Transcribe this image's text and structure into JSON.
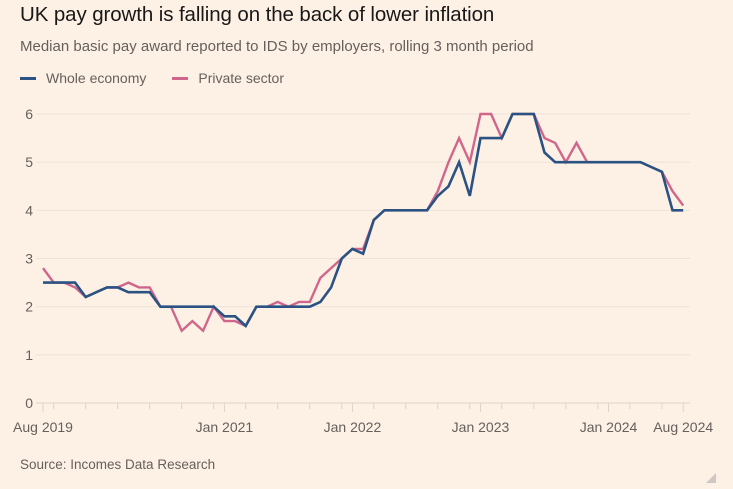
{
  "title": "UK pay growth is falling on the back of lower inflation",
  "subtitle": "Median basic pay award reported to IDS by employers, rolling 3 month period",
  "source": "Source: Incomes Data Research",
  "legend": [
    {
      "label": "Whole economy",
      "color": "#2a5283"
    },
    {
      "label": "Private sector",
      "color": "#d0668b"
    }
  ],
  "chart_data": {
    "type": "line",
    "title": "UK pay growth is falling on the back of lower inflation",
    "subtitle": "Median basic pay award reported to IDS by employers, rolling 3 month period",
    "xlabel": "",
    "ylabel": "",
    "x_start": "Aug 2019",
    "x_end": "Aug 2024",
    "x_frequency": "monthly",
    "ylim": [
      0,
      6
    ],
    "yticks": [
      0,
      1,
      2,
      3,
      4,
      5,
      6
    ],
    "xtick_labels": [
      {
        "label": "Aug 2019",
        "month_index": 0
      },
      {
        "label": "Jan 2021",
        "month_index": 17
      },
      {
        "label": "Jan 2022",
        "month_index": 29
      },
      {
        "label": "Jan 2023",
        "month_index": 41
      },
      {
        "label": "Jan 2024",
        "month_index": 53
      },
      {
        "label": "Aug 2024",
        "month_index": 60
      }
    ],
    "grid": true,
    "legend_position": "top-left",
    "series": [
      {
        "name": "Whole economy",
        "color": "#2a5283",
        "values": [
          2.5,
          2.5,
          2.5,
          2.5,
          2.2,
          2.3,
          2.4,
          2.4,
          2.3,
          2.3,
          2.3,
          2.0,
          2.0,
          2.0,
          2.0,
          2.0,
          2.0,
          1.8,
          1.8,
          1.6,
          2.0,
          2.0,
          2.0,
          2.0,
          2.0,
          2.0,
          2.1,
          2.4,
          3.0,
          3.2,
          3.1,
          3.8,
          4.0,
          4.0,
          4.0,
          4.0,
          4.0,
          4.3,
          4.5,
          5.0,
          4.3,
          5.5,
          5.5,
          5.5,
          6.0,
          6.0,
          6.0,
          5.2,
          5.0,
          5.0,
          5.0,
          5.0,
          5.0,
          5.0,
          5.0,
          5.0,
          5.0,
          4.9,
          4.8,
          4.0,
          4.0
        ]
      },
      {
        "name": "Private sector",
        "color": "#d0668b",
        "values": [
          2.8,
          2.5,
          2.5,
          2.4,
          2.2,
          2.3,
          2.4,
          2.4,
          2.5,
          2.4,
          2.4,
          2.0,
          2.0,
          1.5,
          1.7,
          1.5,
          2.0,
          1.7,
          1.7,
          1.6,
          2.0,
          2.0,
          2.1,
          2.0,
          2.1,
          2.1,
          2.6,
          2.8,
          3.0,
          3.2,
          3.2,
          3.8,
          4.0,
          4.0,
          4.0,
          4.0,
          4.0,
          4.4,
          5.0,
          5.5,
          5.0,
          6.0,
          6.0,
          5.5,
          6.0,
          6.0,
          6.0,
          5.5,
          5.4,
          5.0,
          5.4,
          5.0,
          5.0,
          5.0,
          5.0,
          5.0,
          5.0,
          4.9,
          4.8,
          4.4,
          4.1
        ]
      }
    ]
  }
}
